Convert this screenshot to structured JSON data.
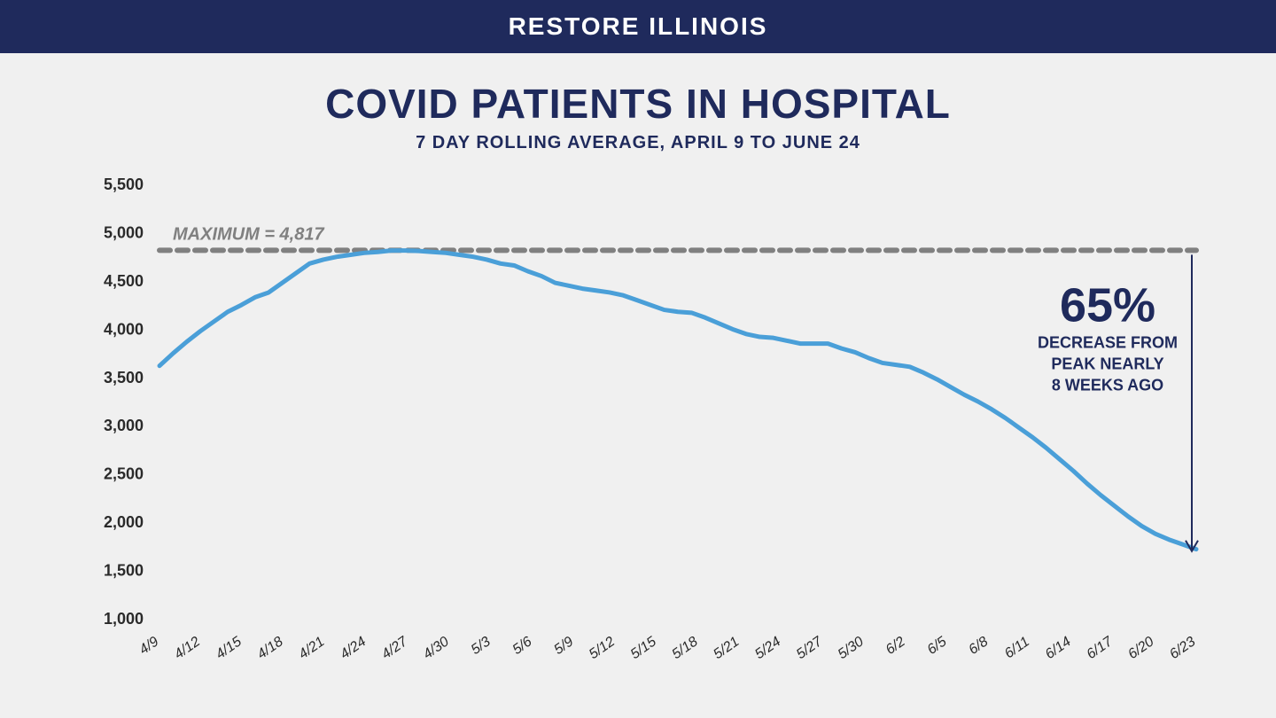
{
  "header": {
    "text": "RESTORE ILLINOIS"
  },
  "title": "COVID PATIENTS IN HOSPITAL",
  "subtitle": "7 DAY ROLLING AVERAGE, APRIL 9 TO JUNE 24",
  "chart": {
    "type": "line",
    "line_color": "#4a9fd8",
    "line_width": 5,
    "background_color": "#f0f0f0",
    "max_line": {
      "value": 4817,
      "label": "MAXIMUM = 4,817",
      "color": "#808080",
      "dash": "12,8",
      "width": 6
    },
    "y_axis": {
      "min": 1000,
      "max": 5500,
      "ticks": [
        1000,
        1500,
        2000,
        2500,
        3000,
        3500,
        4000,
        4500,
        5000,
        5500
      ],
      "labels": [
        "1,000",
        "1,500",
        "2,000",
        "2,500",
        "3,000",
        "3,500",
        "4,000",
        "4,500",
        "5,000",
        "5,500"
      ]
    },
    "x_axis": {
      "labels": [
        "4/9",
        "4/12",
        "4/15",
        "4/18",
        "4/21",
        "4/24",
        "4/27",
        "4/30",
        "5/3",
        "5/6",
        "5/9",
        "5/12",
        "5/15",
        "5/18",
        "5/21",
        "5/24",
        "5/27",
        "5/30",
        "6/2",
        "6/5",
        "6/8",
        "6/11",
        "6/14",
        "6/17",
        "6/20",
        "6/23"
      ]
    },
    "values": [
      3620,
      3750,
      3870,
      3980,
      4080,
      4180,
      4250,
      4330,
      4380,
      4480,
      4580,
      4680,
      4720,
      4750,
      4770,
      4790,
      4800,
      4815,
      4815,
      4810,
      4800,
      4790,
      4770,
      4750,
      4720,
      4680,
      4660,
      4600,
      4550,
      4480,
      4450,
      4420,
      4400,
      4380,
      4350,
      4300,
      4250,
      4200,
      4180,
      4170,
      4120,
      4060,
      4000,
      3950,
      3920,
      3910,
      3880,
      3850,
      3850,
      3850,
      3800,
      3760,
      3700,
      3650,
      3630,
      3610,
      3550,
      3480,
      3400,
      3320,
      3250,
      3170,
      3080,
      2980,
      2880,
      2770,
      2650,
      2530,
      2400,
      2280,
      2170,
      2060,
      1960,
      1880,
      1820,
      1770,
      1720
    ],
    "callout": {
      "percent": "65%",
      "lines": [
        "DECREASE FROM",
        "PEAK NEARLY",
        "8 WEEKS AGO"
      ],
      "arrow_color": "#1f2a5c"
    }
  }
}
